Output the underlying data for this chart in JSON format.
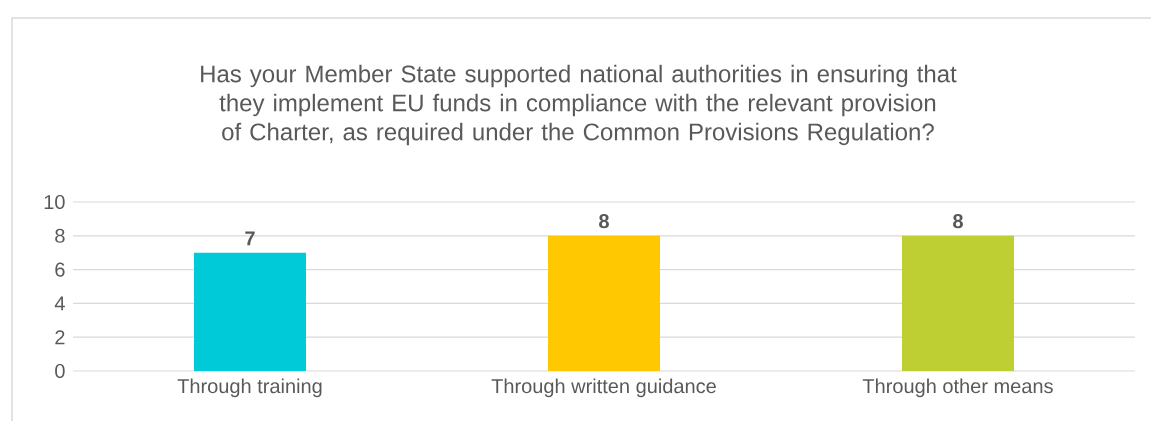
{
  "chart_data": {
    "type": "bar",
    "title": "Has your Member State supported national authorities in ensuring that they implement EU funds in compliance with the relevant provision of Charter, as required under the Common Provisions Regulation?",
    "categories": [
      "Through training",
      "Through written guidance",
      "Through other means"
    ],
    "values": [
      7,
      8,
      8
    ],
    "colors": [
      "#00c9d8",
      "#ffc800",
      "#bdcf32"
    ],
    "ylim": [
      0,
      10
    ],
    "yticks": [
      0,
      2,
      4,
      6,
      8,
      10
    ],
    "grid": "y",
    "data_labels": true
  }
}
